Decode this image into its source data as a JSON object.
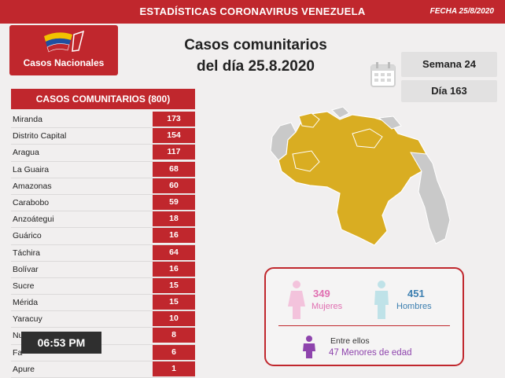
{
  "header": {
    "title": "ESTADÍSTICAS CORONAVIRUS VENEZUELA",
    "date": "FECHA 25/8/2020"
  },
  "logo": {
    "label": "Casos Nacionales",
    "colors": [
      "#f2c200",
      "#1f4fa0",
      "#c0272d"
    ]
  },
  "main_title": {
    "line1": "Casos comunitarios",
    "line2": "del día 25.8.2020"
  },
  "week": "Semana 24",
  "day": "Día 163",
  "table": {
    "header": "CASOS COMUNITARIOS (800)",
    "rows": [
      {
        "state": "Miranda",
        "value": "173"
      },
      {
        "state": "Distrito Capital",
        "value": "154"
      },
      {
        "state": "Aragua",
        "value": "117"
      },
      {
        "state": "La Guaira",
        "value": "68"
      },
      {
        "state": "Amazonas",
        "value": "60"
      },
      {
        "state": "Carabobo",
        "value": "59"
      },
      {
        "state": "Anzoátegui",
        "value": "18"
      },
      {
        "state": "Guárico",
        "value": "16"
      },
      {
        "state": "Táchira",
        "value": "64"
      },
      {
        "state": "Bolívar",
        "value": "16"
      },
      {
        "state": "Sucre",
        "value": "15"
      },
      {
        "state": "Mérida",
        "value": "15"
      },
      {
        "state": "Yaracuy",
        "value": "10"
      },
      {
        "state": "Nueva Esparta",
        "value": "8"
      },
      {
        "state": "Fa",
        "value": "6"
      },
      {
        "state": "Apure",
        "value": "1"
      }
    ]
  },
  "gender": {
    "women_count": "349",
    "women_label": "Mujeres",
    "men_count": "451",
    "men_label": "Hombres",
    "among_label": "Entre ellos",
    "minors": "47 Menores de edad"
  },
  "clock": "06:53 PM",
  "colors": {
    "red": "#c0272d",
    "map_yellow": "#d9ad22",
    "map_gray": "#c9c9c9",
    "women": "#e06fb1",
    "men": "#7ec3cf",
    "minors": "#8e44ad"
  }
}
